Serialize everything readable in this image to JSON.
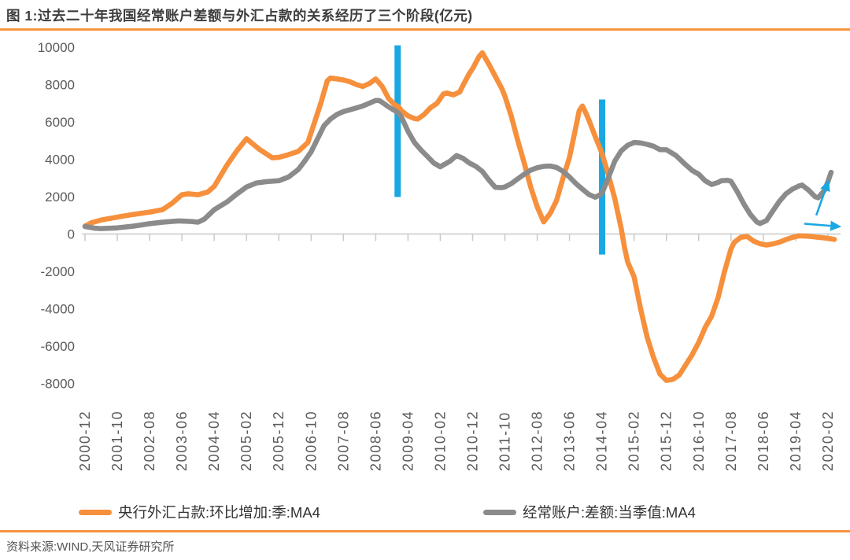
{
  "header": {
    "title": "图 1:过去二十年我国经常账户差额与外汇占款的关系经历了三个阶段(亿元)"
  },
  "footer": {
    "source_note": "资料来源:WIND,天风证券研究所"
  },
  "colors": {
    "orange": "#f6903c",
    "gray": "#8b8b8b",
    "blue": "#1ba7e2",
    "rule_orange": "#f7953f",
    "axis_line": "#d6d6d6",
    "tick": "#c9c9c9",
    "axis_text": "#5a5a5a",
    "title_text": "#3d3d3d",
    "legend_text": "#333333"
  },
  "chart_data": {
    "type": "line",
    "title": "过去二十年我国经常账户差额与外汇占款的关系经历了三个阶段",
    "unit": "亿元",
    "ylim": [
      -8000,
      10000
    ],
    "y_ticks": [
      10000,
      8000,
      6000,
      4000,
      2000,
      0,
      -2000,
      -4000,
      -6000,
      -8000
    ],
    "grid": "none",
    "legend_position": "bottom",
    "x_months_per_tick": 10,
    "x_tick_labels": [
      "2000-12",
      "2001-10",
      "2002-08",
      "2003-06",
      "2004-04",
      "2005-02",
      "2005-12",
      "2006-10",
      "2007-08",
      "2008-06",
      "2009-04",
      "2010-02",
      "2010-12",
      "2011-10",
      "2012-08",
      "2013-06",
      "2014-04",
      "2015-02",
      "2015-12",
      "2016-10",
      "2017-08",
      "2018-06",
      "2019-04",
      "2020-02"
    ],
    "series": [
      {
        "name": "央行外汇占款:环比增加:季:MA4",
        "color_key": "orange",
        "points": [
          [
            0,
            420
          ],
          [
            2,
            600
          ],
          [
            5,
            750
          ],
          [
            10,
            900
          ],
          [
            15,
            1050
          ],
          [
            20,
            1170
          ],
          [
            24,
            1300
          ],
          [
            27,
            1650
          ],
          [
            30,
            2100
          ],
          [
            32,
            2150
          ],
          [
            35,
            2100
          ],
          [
            38,
            2250
          ],
          [
            40,
            2550
          ],
          [
            44,
            3700
          ],
          [
            47,
            4450
          ],
          [
            50,
            5100
          ],
          [
            54,
            4530
          ],
          [
            58,
            4080
          ],
          [
            60,
            4100
          ],
          [
            63,
            4250
          ],
          [
            66,
            4420
          ],
          [
            69,
            4900
          ],
          [
            71,
            5950
          ],
          [
            73,
            7000
          ],
          [
            75,
            8200
          ],
          [
            76,
            8350
          ],
          [
            78,
            8300
          ],
          [
            80,
            8250
          ],
          [
            82,
            8150
          ],
          [
            84,
            8000
          ],
          [
            86,
            7900
          ],
          [
            88,
            8050
          ],
          [
            90,
            8300
          ],
          [
            92,
            7900
          ],
          [
            94,
            7250
          ],
          [
            96,
            6900
          ],
          [
            97,
            6820
          ],
          [
            98,
            6600
          ],
          [
            100,
            6320
          ],
          [
            102,
            6180
          ],
          [
            103,
            6150
          ],
          [
            105,
            6400
          ],
          [
            107,
            6760
          ],
          [
            109,
            7000
          ],
          [
            111,
            7500
          ],
          [
            112,
            7550
          ],
          [
            114,
            7450
          ],
          [
            116,
            7600
          ],
          [
            117,
            7950
          ],
          [
            119,
            8600
          ],
          [
            120,
            8850
          ],
          [
            122,
            9500
          ],
          [
            123,
            9700
          ],
          [
            125,
            9100
          ],
          [
            127,
            8450
          ],
          [
            129,
            7800
          ],
          [
            130,
            7380
          ],
          [
            132,
            6300
          ],
          [
            134,
            5000
          ],
          [
            136,
            3800
          ],
          [
            138,
            2500
          ],
          [
            140,
            1450
          ],
          [
            142,
            650
          ],
          [
            144,
            1100
          ],
          [
            146,
            1800
          ],
          [
            148,
            3000
          ],
          [
            150,
            4100
          ],
          [
            152,
            5750
          ],
          [
            153,
            6600
          ],
          [
            154,
            6850
          ],
          [
            155,
            6500
          ],
          [
            156,
            6100
          ],
          [
            158,
            5200
          ],
          [
            160,
            4350
          ],
          [
            162,
            3200
          ],
          [
            164,
            1900
          ],
          [
            165,
            1100
          ],
          [
            166,
            300
          ],
          [
            167,
            -700
          ],
          [
            168,
            -1500
          ],
          [
            170,
            -2300
          ],
          [
            172,
            -4000
          ],
          [
            174,
            -5500
          ],
          [
            176,
            -6600
          ],
          [
            178,
            -7500
          ],
          [
            180,
            -7840
          ],
          [
            182,
            -7780
          ],
          [
            184,
            -7550
          ],
          [
            186,
            -7000
          ],
          [
            188,
            -6450
          ],
          [
            190,
            -5800
          ],
          [
            192,
            -5000
          ],
          [
            194,
            -4400
          ],
          [
            196,
            -3400
          ],
          [
            198,
            -2000
          ],
          [
            200,
            -800
          ],
          [
            201,
            -450
          ],
          [
            203,
            -180
          ],
          [
            205,
            -130
          ],
          [
            207,
            -380
          ],
          [
            209,
            -520
          ],
          [
            211,
            -590
          ],
          [
            213,
            -530
          ],
          [
            215,
            -440
          ],
          [
            217,
            -300
          ],
          [
            219,
            -180
          ],
          [
            221,
            -100
          ],
          [
            223,
            -110
          ],
          [
            225,
            -140
          ],
          [
            227,
            -180
          ],
          [
            229,
            -210
          ],
          [
            230,
            -230
          ],
          [
            232,
            -290
          ]
        ]
      },
      {
        "name": "经常账户:差额:当季值:MA4",
        "color_key": "gray",
        "points": [
          [
            0,
            400
          ],
          [
            3,
            310
          ],
          [
            5,
            290
          ],
          [
            10,
            330
          ],
          [
            15,
            420
          ],
          [
            20,
            550
          ],
          [
            24,
            630
          ],
          [
            29,
            700
          ],
          [
            33,
            670
          ],
          [
            35,
            630
          ],
          [
            37,
            800
          ],
          [
            40,
            1300
          ],
          [
            44,
            1720
          ],
          [
            47,
            2140
          ],
          [
            50,
            2520
          ],
          [
            53,
            2730
          ],
          [
            56,
            2800
          ],
          [
            60,
            2850
          ],
          [
            63,
            3050
          ],
          [
            66,
            3450
          ],
          [
            68,
            3900
          ],
          [
            70,
            4400
          ],
          [
            72,
            5100
          ],
          [
            74,
            5800
          ],
          [
            76,
            6150
          ],
          [
            78,
            6400
          ],
          [
            80,
            6550
          ],
          [
            82,
            6650
          ],
          [
            84,
            6750
          ],
          [
            86,
            6850
          ],
          [
            88,
            7000
          ],
          [
            90,
            7150
          ],
          [
            91,
            7150
          ],
          [
            92,
            7050
          ],
          [
            94,
            6800
          ],
          [
            96,
            6600
          ],
          [
            97,
            6480
          ],
          [
            98,
            6250
          ],
          [
            100,
            5500
          ],
          [
            102,
            4900
          ],
          [
            104,
            4500
          ],
          [
            106,
            4150
          ],
          [
            108,
            3800
          ],
          [
            110,
            3600
          ],
          [
            113,
            3900
          ],
          [
            115,
            4200
          ],
          [
            117,
            4050
          ],
          [
            119,
            3800
          ],
          [
            121,
            3620
          ],
          [
            123,
            3350
          ],
          [
            125,
            2900
          ],
          [
            127,
            2500
          ],
          [
            129,
            2480
          ],
          [
            130,
            2520
          ],
          [
            132,
            2700
          ],
          [
            134,
            2950
          ],
          [
            136,
            3200
          ],
          [
            138,
            3420
          ],
          [
            140,
            3550
          ],
          [
            142,
            3620
          ],
          [
            144,
            3640
          ],
          [
            146,
            3560
          ],
          [
            148,
            3350
          ],
          [
            150,
            3050
          ],
          [
            152,
            2700
          ],
          [
            154,
            2400
          ],
          [
            156,
            2120
          ],
          [
            158,
            1970
          ],
          [
            160,
            2150
          ],
          [
            162,
            3000
          ],
          [
            164,
            3900
          ],
          [
            166,
            4450
          ],
          [
            168,
            4750
          ],
          [
            170,
            4900
          ],
          [
            172,
            4870
          ],
          [
            174,
            4800
          ],
          [
            176,
            4700
          ],
          [
            178,
            4520
          ],
          [
            180,
            4510
          ],
          [
            183,
            4200
          ],
          [
            186,
            3700
          ],
          [
            188,
            3400
          ],
          [
            190,
            3200
          ],
          [
            192,
            2850
          ],
          [
            194,
            2650
          ],
          [
            196,
            2760
          ],
          [
            197,
            2850
          ],
          [
            199,
            2870
          ],
          [
            200,
            2820
          ],
          [
            202,
            2250
          ],
          [
            204,
            1600
          ],
          [
            206,
            1050
          ],
          [
            208,
            650
          ],
          [
            209,
            560
          ],
          [
            211,
            720
          ],
          [
            213,
            1250
          ],
          [
            215,
            1750
          ],
          [
            217,
            2150
          ],
          [
            219,
            2400
          ],
          [
            221,
            2570
          ],
          [
            222,
            2620
          ],
          [
            224,
            2350
          ],
          [
            226,
            2000
          ],
          [
            227,
            1940
          ],
          [
            229,
            2350
          ],
          [
            230,
            2800
          ],
          [
            231,
            3300
          ]
        ]
      }
    ],
    "phase_bars": [
      {
        "name": "phase-divider-1",
        "x_month": 96.8,
        "v_top": 10100,
        "v_bottom": 1980
      },
      {
        "name": "phase-divider-2",
        "x_month": 160.1,
        "v_top": 7200,
        "v_bottom": -1100
      }
    ],
    "arrows": [
      {
        "name": "up-trend-arrow",
        "x1_month": 226.4,
        "v1": 1000,
        "x2_month": 230.3,
        "v2": 2900
      },
      {
        "name": "flat-trend-arrow",
        "x1_month": 222.7,
        "v1": 550,
        "x2_month": 234.2,
        "v2": 390
      }
    ]
  }
}
